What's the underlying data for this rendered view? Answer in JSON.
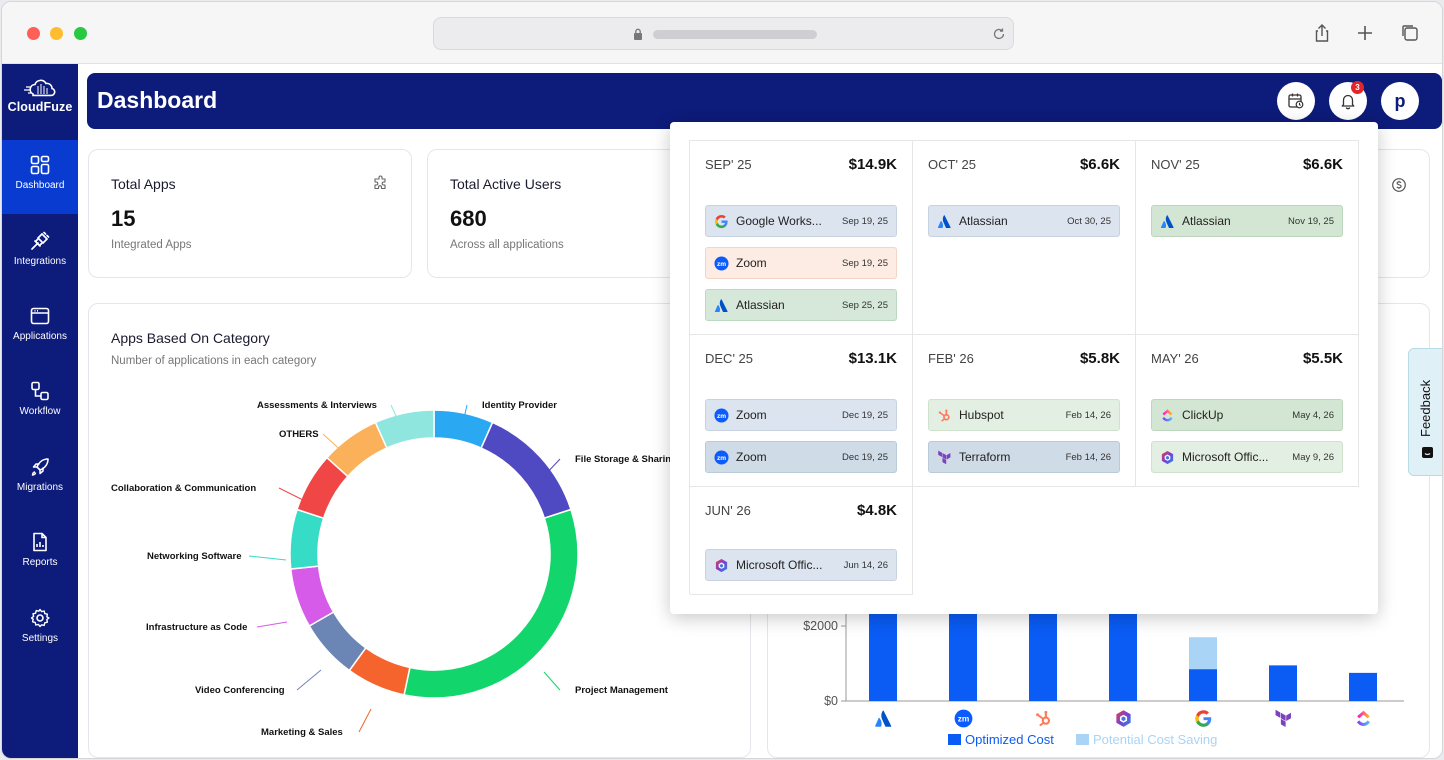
{
  "app": {
    "logo_text": "CloudFuze",
    "page_title": "Dashboard",
    "notification_count": "3",
    "avatar_initial": "p"
  },
  "sidebar": {
    "items": [
      {
        "label": "Dashboard",
        "icon": "dashboard-icon",
        "active": true
      },
      {
        "label": "Integrations",
        "icon": "plug-icon",
        "active": false
      },
      {
        "label": "Applications",
        "icon": "window-icon",
        "active": false
      },
      {
        "label": "Workflow",
        "icon": "workflow-icon",
        "active": false
      },
      {
        "label": "Migrations",
        "icon": "rocket-icon",
        "active": false
      },
      {
        "label": "Reports",
        "icon": "report-icon",
        "active": false
      },
      {
        "label": "Settings",
        "icon": "gear-icon",
        "active": false
      }
    ]
  },
  "stats": [
    {
      "title": "Total Apps",
      "value": "15",
      "sub": "Integrated Apps",
      "icon": "puzzle-icon"
    },
    {
      "title": "Total Active Users",
      "value": "680",
      "sub": "Across all applications"
    }
  ],
  "category_chart": {
    "title": "Apps Based On Category",
    "subtitle": "Number of applications in each category"
  },
  "chart_data": [
    {
      "type": "pie",
      "categories": [
        "Identity Provider",
        "File Storage & Sharing",
        "Project Management",
        "Marketing & Sales",
        "Video Conferencing",
        "Infrastructure as Code",
        "Networking Software",
        "Collaboration & Communication",
        "OTHERS",
        "Assessments & Interviews"
      ],
      "visible_labels": [
        "Identity Provider",
        "File Storage & Sharin",
        "Project Management",
        "Marketing & Sales",
        "Video Conferencing",
        "Infrastructure as Code",
        "Networking Software",
        "Collaboration & Communication",
        "OTHERS",
        "Assessments & Interviews"
      ],
      "values": [
        1,
        2,
        5,
        1,
        1,
        1,
        1,
        1,
        1,
        1
      ],
      "colors": [
        "#2aa8f2",
        "#4f49c2",
        "#12d66c",
        "#f5642c",
        "#6b85b5",
        "#d55be8",
        "#36dcc6",
        "#f04646",
        "#fbb05a",
        "#8fe6df"
      ]
    },
    {
      "type": "bar",
      "categories": [
        "Atlassian",
        "Zoom",
        "Hubspot",
        "Microsoft Office",
        "Google Workspace",
        "Terraform",
        "ClickUp"
      ],
      "category_icons": [
        "atlassian-icon",
        "zoom-icon",
        "hubspot-icon",
        "microsoft-office-icon",
        "google-icon",
        "terraform-icon",
        "clickup-icon"
      ],
      "series": [
        {
          "name": "Optimized Cost",
          "values": [
            4000,
            4000,
            4000,
            4000,
            850,
            950,
            750
          ],
          "color": "#0a5cf5"
        },
        {
          "name": "Potential Cost Saving",
          "values": [
            0,
            0,
            0,
            0,
            850,
            0,
            0
          ],
          "color": "#a9d4f5"
        }
      ],
      "yticks": [
        "$0",
        "$2000"
      ],
      "ylim": [
        0,
        4000
      ]
    }
  ],
  "renewals": {
    "months": [
      {
        "month": "SEP' 25",
        "amount": "$14.9K",
        "apps": [
          {
            "name": "Google Works...",
            "date": "Sep 19, 25",
            "icon": "google-icon",
            "style": "c-blue"
          },
          {
            "name": "Zoom",
            "date": "Sep 19, 25",
            "icon": "zoom-icon",
            "style": "c-peach"
          },
          {
            "name": "Atlassian",
            "date": "Sep 25, 25",
            "icon": "atlassian-icon",
            "style": "c-green"
          }
        ]
      },
      {
        "month": "OCT' 25",
        "amount": "$6.6K",
        "apps": [
          {
            "name": "Atlassian",
            "date": "Oct 30, 25",
            "icon": "atlassian-icon",
            "style": "c-blue"
          }
        ]
      },
      {
        "month": "NOV' 25",
        "amount": "$6.6K",
        "apps": [
          {
            "name": "Atlassian",
            "date": "Nov 19, 25",
            "icon": "atlassian-icon",
            "style": "c-mgreen"
          }
        ]
      },
      {
        "month": "DEC' 25",
        "amount": "$13.1K",
        "apps": [
          {
            "name": "Zoom",
            "date": "Dec 19, 25",
            "icon": "zoom-icon",
            "style": "c-blue"
          },
          {
            "name": "Zoom",
            "date": "Dec 19, 25",
            "icon": "zoom-icon",
            "style": "c-gblue"
          }
        ]
      },
      {
        "month": "FEB' 26",
        "amount": "$5.8K",
        "apps": [
          {
            "name": "Hubspot",
            "date": "Feb 14, 26",
            "icon": "hubspot-icon",
            "style": "c-lgreen"
          },
          {
            "name": "Terraform",
            "date": "Feb 14, 26",
            "icon": "terraform-icon",
            "style": "c-gblue"
          }
        ]
      },
      {
        "month": "MAY' 26",
        "amount": "$5.5K",
        "apps": [
          {
            "name": "ClickUp",
            "date": "May 4, 26",
            "icon": "clickup-icon",
            "style": "c-mgreen"
          },
          {
            "name": "Microsoft Offic...",
            "date": "May 9, 26",
            "icon": "microsoft-office-icon",
            "style": "c-lgreen"
          }
        ]
      },
      {
        "month": "JUN' 26",
        "amount": "$4.8K",
        "apps": [
          {
            "name": "Microsoft Offic...",
            "date": "Jun 14, 26",
            "icon": "microsoft-office-icon",
            "style": "c-blue"
          }
        ]
      }
    ]
  },
  "feedback_label": "Feedback"
}
